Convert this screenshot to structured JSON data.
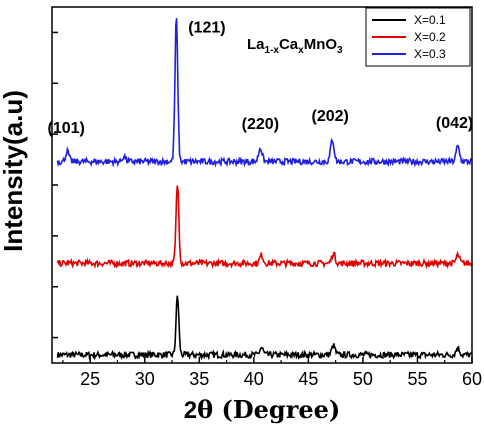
{
  "chart_data": {
    "type": "line",
    "xlabel_main": "2",
    "xlabel_theta": "θ",
    "xlabel_rest": " (Degree)",
    "ylabel": "Intensity(a.u)",
    "xlim": [
      21.5,
      60
    ],
    "xticks": [
      25,
      30,
      35,
      40,
      45,
      50,
      55,
      60
    ],
    "compound": {
      "a": "La",
      "b": "1-x",
      "c": "Ca",
      "d": "x",
      "e": "MnO",
      "f": "3"
    },
    "grid": false,
    "legend_position": "top-right",
    "colors": {
      "X=0.1": "#000000",
      "X=0.2": "#e00000",
      "X=0.3": "#1f1fe0"
    },
    "series": [
      {
        "name": "X=0.1",
        "color": "#000000",
        "baseline": 0.08,
        "peaks": [
          {
            "x": 33.0,
            "h": 0.58
          },
          {
            "x": 40.7,
            "h": 0.07
          },
          {
            "x": 47.3,
            "h": 0.09
          },
          {
            "x": 58.7,
            "h": 0.07
          }
        ]
      },
      {
        "name": "X=0.2",
        "color": "#e00000",
        "baseline": 0.98,
        "peaks": [
          {
            "x": 33.0,
            "h": 0.78
          },
          {
            "x": 40.7,
            "h": 0.08
          },
          {
            "x": 47.3,
            "h": 0.1
          },
          {
            "x": 58.7,
            "h": 0.08
          }
        ]
      },
      {
        "name": "X=0.3",
        "color": "#1f1fe0",
        "baseline": 1.98,
        "peaks": [
          {
            "x": 22.9,
            "h": 0.1
          },
          {
            "x": 28.1,
            "h": 0.05
          },
          {
            "x": 32.9,
            "h": 1.42
          },
          {
            "x": 40.6,
            "h": 0.14
          },
          {
            "x": 47.2,
            "h": 0.22
          },
          {
            "x": 58.7,
            "h": 0.15
          }
        ]
      }
    ],
    "annotations": [
      {
        "text": "(101)",
        "x": 22.8
      },
      {
        "text": "(121)",
        "x": 35.7
      },
      {
        "text": "(220)",
        "x": 40.6
      },
      {
        "text": "(202)",
        "x": 47.0
      },
      {
        "text": "(042)",
        "x": 58.4
      }
    ]
  }
}
